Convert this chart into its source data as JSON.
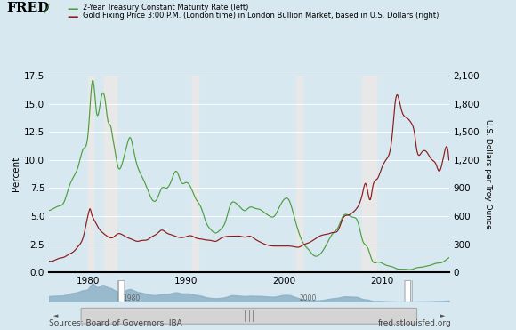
{
  "legend1": "2-Year Treasury Constant Maturity Rate (left)",
  "legend2": "Gold Fixing Price 3:00 P.M. (London time) in London Bullion Market, based in U.S. Dollars (right)",
  "ylabel_left": "Percent",
  "ylabel_right": "U.S. Dollars per Troy Ounce",
  "source_text": "Sources: Board of Governors, IBA",
  "website_text": "fred.stlouisfed.org",
  "xlim": [
    1976.0,
    2016.8
  ],
  "ylim_left": [
    0,
    17.5
  ],
  "ylim_right": [
    0,
    2100
  ],
  "yticks_left": [
    0.0,
    2.5,
    5.0,
    7.5,
    10.0,
    12.5,
    15.0,
    17.5
  ],
  "yticks_right": [
    0,
    300,
    600,
    900,
    1200,
    1500,
    1800,
    2100
  ],
  "xticks": [
    1980,
    1990,
    2000,
    2010
  ],
  "recession_bands": [
    [
      1980.0,
      1980.5
    ],
    [
      1981.6,
      1982.9
    ],
    [
      1990.6,
      1991.2
    ],
    [
      2001.2,
      2001.9
    ],
    [
      2007.9,
      2009.4
    ]
  ],
  "bg_color": "#d8e8f0",
  "plot_bg_color": "#d8e8f0",
  "recession_color": "#e8e8e8",
  "line_color_treasury": "#4d9e3f",
  "line_color_gold": "#8b1a1a",
  "nav_bg": "#c5d8e5",
  "nav_fill": "#8aafc5"
}
